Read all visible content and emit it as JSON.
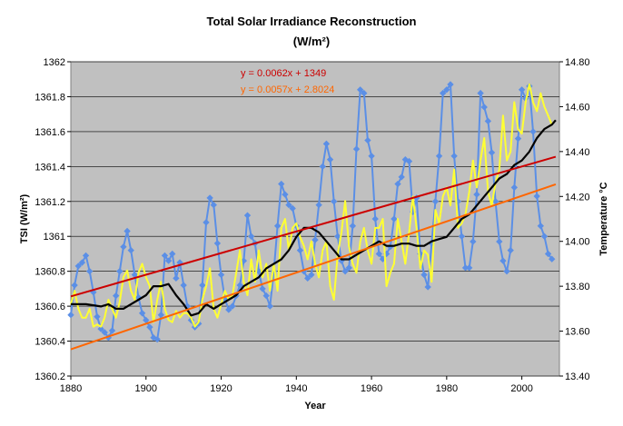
{
  "chart_data": {
    "type": "line",
    "title": "Total Solar Irradiance Reconstruction",
    "subtitle": "(W/m²)",
    "xlabel": "Year",
    "ylabel_left": "TSI (W/m²)",
    "ylabel_right": "Temperature °C",
    "xlim": [
      1880,
      2010
    ],
    "ylim_left": [
      1360.2,
      1362
    ],
    "ylim_right": [
      13.4,
      14.8
    ],
    "x_ticks": [
      "1880",
      "1900",
      "1920",
      "1940",
      "1960",
      "1980",
      "2000"
    ],
    "y_ticks_left": [
      "1360.2",
      "1360.4",
      "1360.6",
      "1360.8",
      "1361",
      "1361.2",
      "1361.4",
      "1361.6",
      "1361.8",
      "1362"
    ],
    "y_ticks_right": [
      "13.40",
      "13.60",
      "13.80",
      "14.00",
      "14.20",
      "14.40",
      "14.60",
      "14.80"
    ],
    "grid": "horizontal",
    "plot_background": "#c0c0c0",
    "annotations": [
      {
        "text": "y = 0.0062x + 1349",
        "color": "#cc0000"
      },
      {
        "text": "y = 0.0057x + 2.8024",
        "color": "#ff6600"
      }
    ],
    "series": [
      {
        "color": "#5b8fe6",
        "axis": "left",
        "markers": true,
        "x": [
          1880,
          1881,
          1882,
          1883,
          1884,
          1885,
          1886,
          1887,
          1888,
          1889,
          1890,
          1891,
          1892,
          1893,
          1894,
          1895,
          1896,
          1897,
          1898,
          1899,
          1900,
          1901,
          1902,
          1903,
          1904,
          1905,
          1906,
          1907,
          1908,
          1909,
          1910,
          1911,
          1912,
          1913,
          1914,
          1915,
          1916,
          1917,
          1918,
          1919,
          1920,
          1921,
          1922,
          1923,
          1924,
          1925,
          1926,
          1927,
          1928,
          1929,
          1930,
          1931,
          1932,
          1933,
          1934,
          1935,
          1936,
          1937,
          1938,
          1939,
          1940,
          1941,
          1942,
          1943,
          1944,
          1945,
          1946,
          1947,
          1948,
          1949,
          1950,
          1951,
          1952,
          1953,
          1954,
          1955,
          1956,
          1957,
          1958,
          1959,
          1960,
          1961,
          1962,
          1963,
          1964,
          1965,
          1966,
          1967,
          1968,
          1969,
          1970,
          1971,
          1972,
          1973,
          1974,
          1975,
          1976,
          1977,
          1978,
          1979,
          1980,
          1981,
          1982,
          1983,
          1984,
          1985,
          1986,
          1987,
          1988,
          1989,
          1990,
          1991,
          1992,
          1993,
          1994,
          1995,
          1996,
          1997,
          1998,
          1999,
          2000,
          2001,
          2002,
          2003,
          2004,
          2005,
          2006,
          2007,
          2008
        ],
        "y": [
          1360.55,
          1360.72,
          1360.83,
          1360.85,
          1360.89,
          1360.8,
          1360.68,
          1360.54,
          1360.47,
          1360.45,
          1360.42,
          1360.46,
          1360.66,
          1360.8,
          1360.94,
          1361.03,
          1360.92,
          1360.78,
          1360.65,
          1360.56,
          1360.52,
          1360.48,
          1360.42,
          1360.41,
          1360.55,
          1360.89,
          1360.86,
          1360.9,
          1360.76,
          1360.85,
          1360.72,
          1360.6,
          1360.52,
          1360.48,
          1360.5,
          1360.72,
          1361.08,
          1361.22,
          1361.18,
          1360.96,
          1360.78,
          1360.64,
          1360.58,
          1360.6,
          1360.66,
          1360.72,
          1360.86,
          1361.12,
          1361.0,
          1360.96,
          1360.8,
          1360.7,
          1360.66,
          1360.6,
          1360.8,
          1361.06,
          1361.3,
          1361.24,
          1361.18,
          1361.16,
          1361.06,
          1360.92,
          1360.8,
          1360.76,
          1360.78,
          1360.98,
          1361.18,
          1361.4,
          1361.53,
          1361.44,
          1361.2,
          1361.0,
          1360.86,
          1360.8,
          1360.82,
          1361.06,
          1361.5,
          1361.84,
          1361.82,
          1361.55,
          1361.46,
          1361.1,
          1360.9,
          1360.87,
          1360.9,
          1360.94,
          1361.1,
          1361.3,
          1361.34,
          1361.44,
          1361.43,
          1361.14,
          1361.22,
          1360.9,
          1360.78,
          1360.71,
          1360.96,
          1361.2,
          1361.46,
          1361.82,
          1361.84,
          1361.87,
          1361.46,
          1361.2,
          1361.0,
          1360.82,
          1360.82,
          1360.97,
          1361.24,
          1361.82,
          1361.74,
          1361.66,
          1361.48,
          1361.2,
          1360.97,
          1360.86,
          1360.8,
          1360.92,
          1361.28,
          1361.56,
          1361.84,
          1361.79,
          1361.86,
          1361.6,
          1361.23,
          1361.06,
          1361.0,
          1360.9,
          1360.87
        ]
      },
      {
        "color": "#ffff33",
        "axis": "right",
        "markers": false,
        "x": [
          1880,
          1881,
          1882,
          1883,
          1884,
          1885,
          1886,
          1887,
          1888,
          1889,
          1890,
          1891,
          1892,
          1893,
          1894,
          1895,
          1896,
          1897,
          1898,
          1899,
          1900,
          1901,
          1902,
          1903,
          1904,
          1905,
          1906,
          1907,
          1908,
          1909,
          1910,
          1911,
          1912,
          1913,
          1914,
          1915,
          1916,
          1917,
          1918,
          1919,
          1920,
          1921,
          1922,
          1923,
          1924,
          1925,
          1926,
          1927,
          1928,
          1929,
          1930,
          1931,
          1932,
          1933,
          1934,
          1935,
          1936,
          1937,
          1938,
          1939,
          1940,
          1941,
          1942,
          1943,
          1944,
          1945,
          1946,
          1947,
          1948,
          1949,
          1950,
          1951,
          1952,
          1953,
          1954,
          1955,
          1956,
          1957,
          1958,
          1959,
          1960,
          1961,
          1962,
          1963,
          1964,
          1965,
          1966,
          1967,
          1968,
          1969,
          1970,
          1971,
          1972,
          1973,
          1974,
          1975,
          1976,
          1977,
          1978,
          1979,
          1980,
          1981,
          1982,
          1983,
          1984,
          1985,
          1986,
          1987,
          1988,
          1989,
          1990,
          1991,
          1992,
          1993,
          1994,
          1995,
          1996,
          1997,
          1998,
          1999,
          2000,
          2001,
          2002,
          2003,
          2004,
          2005,
          2006,
          2007,
          2008
        ],
        "y": [
          13.72,
          13.78,
          13.7,
          13.66,
          13.66,
          13.7,
          13.62,
          13.63,
          13.62,
          13.66,
          13.74,
          13.7,
          13.66,
          13.73,
          13.84,
          13.87,
          13.78,
          13.74,
          13.86,
          13.9,
          13.84,
          13.8,
          13.64,
          13.74,
          13.82,
          13.7,
          13.65,
          13.64,
          13.69,
          13.66,
          13.68,
          13.68,
          13.66,
          13.62,
          13.64,
          13.74,
          13.8,
          13.88,
          13.7,
          13.66,
          13.72,
          13.78,
          13.74,
          13.76,
          13.86,
          13.96,
          13.82,
          13.76,
          13.92,
          13.82,
          13.96,
          13.84,
          13.9,
          13.78,
          13.9,
          13.78,
          14.06,
          14.1,
          13.96,
          14.06,
          14.08,
          14.02,
          13.98,
          13.92,
          14.0,
          13.9,
          13.84,
          13.96,
          14.0,
          13.8,
          13.74,
          13.94,
          14.04,
          14.18,
          13.98,
          13.9,
          13.86,
          14.0,
          14.06,
          13.96,
          13.9,
          14.06,
          14.06,
          14.1,
          13.8,
          13.86,
          13.9,
          14.1,
          14.0,
          13.9,
          14.04,
          14.2,
          14.06,
          13.88,
          13.96,
          13.94,
          13.82,
          14.14,
          14.08,
          14.2,
          14.24,
          14.16,
          14.32,
          14.06,
          14.08,
          14.12,
          14.22,
          14.36,
          14.24,
          14.36,
          14.46,
          14.22,
          14.16,
          14.26,
          14.32,
          14.56,
          14.36,
          14.4,
          14.62,
          14.5,
          14.48,
          14.62,
          14.7,
          14.62,
          14.58,
          14.66,
          14.6,
          14.56,
          14.52
        ]
      },
      {
        "color": "#000000",
        "axis": "right",
        "markers": false,
        "x": [
          1880,
          1884,
          1888,
          1890,
          1892,
          1894,
          1896,
          1898,
          1900,
          1902,
          1904,
          1906,
          1908,
          1910,
          1912,
          1914,
          1916,
          1918,
          1920,
          1922,
          1924,
          1926,
          1928,
          1930,
          1932,
          1934,
          1936,
          1938,
          1940,
          1942,
          1944,
          1946,
          1948,
          1950,
          1952,
          1954,
          1956,
          1958,
          1960,
          1962,
          1964,
          1966,
          1968,
          1970,
          1972,
          1974,
          1976,
          1978,
          1980,
          1982,
          1984,
          1986,
          1988,
          1990,
          1992,
          1994,
          1996,
          1998,
          2000,
          2002,
          2004,
          2006,
          2008,
          2009
        ],
        "y": [
          13.72,
          13.72,
          13.71,
          13.72,
          13.7,
          13.7,
          13.72,
          13.74,
          13.76,
          13.8,
          13.8,
          13.81,
          13.76,
          13.72,
          13.67,
          13.68,
          13.72,
          13.7,
          13.72,
          13.74,
          13.76,
          13.8,
          13.82,
          13.84,
          13.88,
          13.9,
          13.92,
          13.96,
          14.02,
          14.06,
          14.06,
          14.04,
          14.0,
          13.96,
          13.92,
          13.92,
          13.94,
          13.96,
          13.98,
          14.0,
          13.98,
          13.98,
          13.99,
          13.99,
          13.98,
          13.98,
          14.0,
          14.01,
          14.02,
          14.06,
          14.1,
          14.12,
          14.16,
          14.2,
          14.24,
          14.28,
          14.3,
          14.34,
          14.36,
          14.4,
          14.46,
          14.5,
          14.52,
          14.54
        ]
      },
      {
        "color": "#cc0000",
        "axis": "left",
        "markers": false,
        "trend": true,
        "x": [
          1880,
          2009
        ],
        "y": [
          1360.656,
          1361.456
        ]
      },
      {
        "color": "#ff6600",
        "axis": "right",
        "markers": false,
        "trend": true,
        "x": [
          1880,
          2009
        ],
        "y": [
          13.519,
          14.254
        ]
      }
    ]
  }
}
